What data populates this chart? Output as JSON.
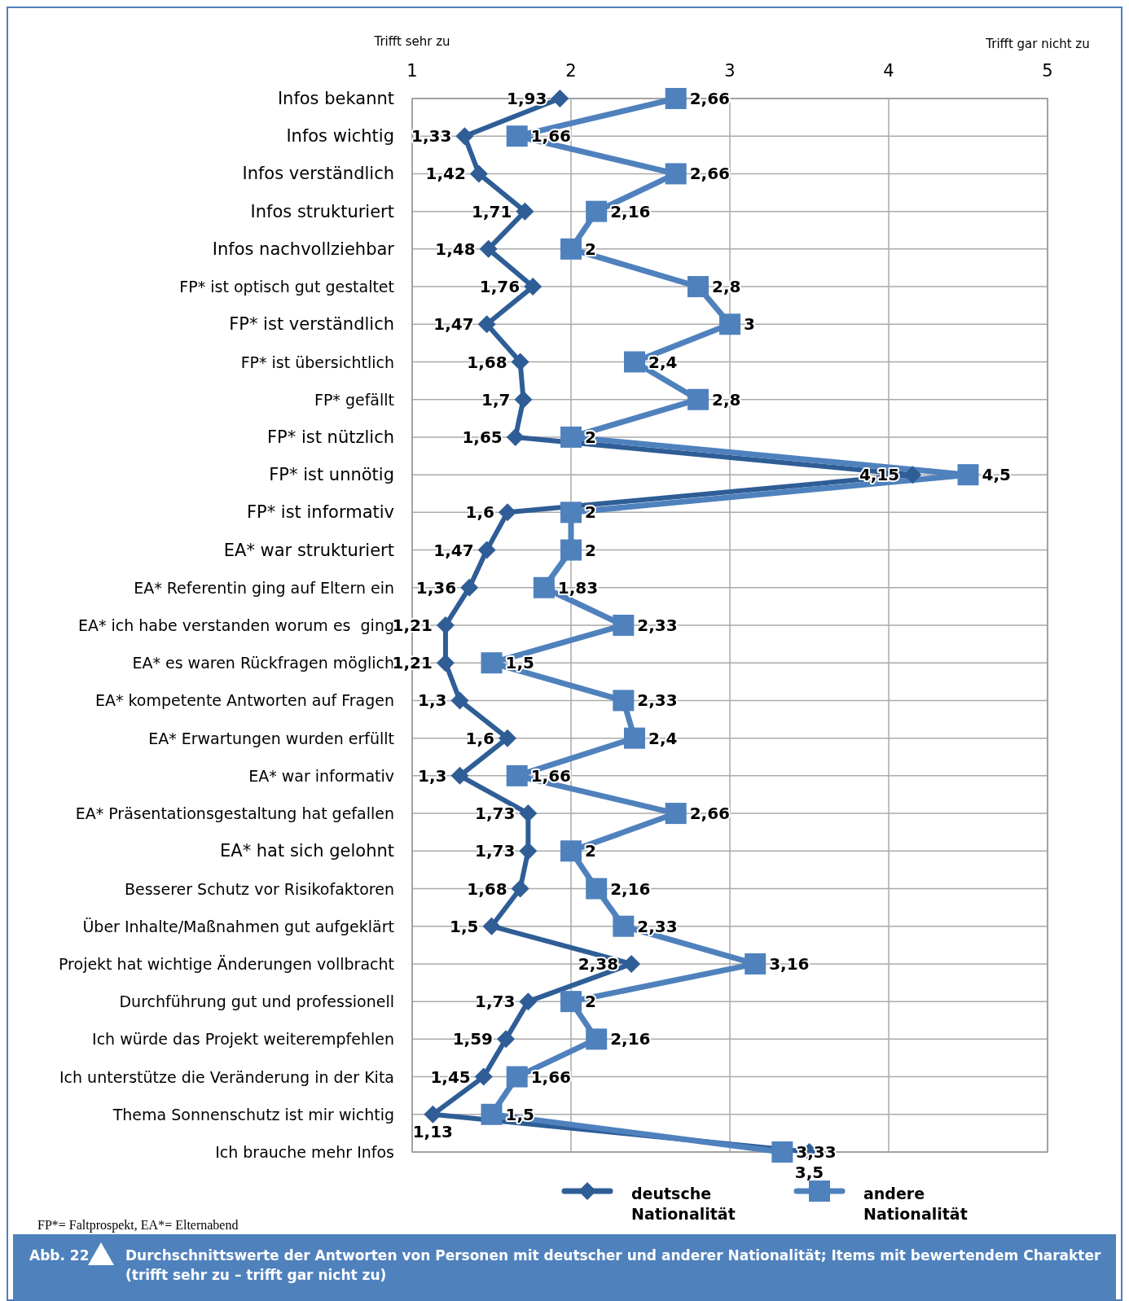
{
  "chart_data": {
    "type": "line",
    "orientation": "horizontal",
    "title": "Abb. 22",
    "subtitle": "Durchschnittswerte der Antworten von Personen mit deutscher und anderer Nationalität; Items mit bewertendem Charakter (trifft sehr zu – trifft gar nicht zu)",
    "categories": [
      "Infos bekannt",
      "Infos wichtig",
      "Infos verständlich",
      "Infos strukturiert",
      "Infos nachvollziehbar",
      "FP* ist optisch gut gestaltet",
      "FP* ist verständlich",
      "FP* ist übersichtlich",
      "FP* gefällt",
      "FP* ist nützlich",
      "FP* ist unnötig",
      "FP* ist informativ",
      "EA* war strukturiert",
      "EA* Referentin ging auf Eltern ein",
      "EA* ich habe verstanden worum es  ging",
      "EA* es waren Rückfragen möglich",
      "EA* kompetente Antworten auf Fragen",
      "EA* Erwartungen wurden erfüllt",
      "EA* war informativ",
      "EA* Präsentationsgestaltung hat gefallen",
      "EA* hat sich gelohnt",
      "Besserer Schutz vor Risikofaktoren",
      "Über Inhalte/Maßnahmen gut aufgeklärt",
      "Projekt hat wichtige Änderungen vollbracht",
      "Durchführung gut und professionell",
      "Ich würde das Projekt weiterempfehlen",
      "Ich unterstütze die Veränderung in der Kita",
      "Thema Sonnenschutz ist mir wichtig",
      "Ich brauche mehr Infos"
    ],
    "series": [
      {
        "name": "deutsche Nationalität",
        "color": "#2f5d96",
        "marker": "diamond",
        "values": [
          1.93,
          1.33,
          1.42,
          1.71,
          1.48,
          1.76,
          1.47,
          1.68,
          1.7,
          1.65,
          4.15,
          1.6,
          1.47,
          1.36,
          1.21,
          1.21,
          1.3,
          1.6,
          1.3,
          1.73,
          1.73,
          1.68,
          1.5,
          2.38,
          1.73,
          1.59,
          1.45,
          1.13,
          3.5
        ],
        "value_labels": [
          "1,93",
          "1,33",
          "1,42",
          "1,71",
          "1,48",
          "1,76",
          "1,47",
          "1,68",
          "1,7",
          "1,65",
          "4,15",
          "1,6",
          "1,47",
          "1,36",
          "1,21",
          "1,21",
          "1,3",
          "1,6",
          "1,3",
          "1,73",
          "1,73",
          "1,68",
          "1,5",
          "2,38",
          "1,73",
          "1,59",
          "1,45",
          "1,13",
          "3,5"
        ]
      },
      {
        "name": "andere Nationalität",
        "color": "#4f81bd",
        "marker": "square",
        "values": [
          2.66,
          1.66,
          2.66,
          2.16,
          2,
          2.8,
          3,
          2.4,
          2.8,
          2,
          4.5,
          2,
          2,
          1.83,
          2.33,
          1.5,
          2.33,
          2.4,
          1.66,
          2.66,
          2,
          2.16,
          2.33,
          3.16,
          2,
          2.16,
          1.66,
          1.5,
          3.33
        ],
        "value_labels": [
          "2,66",
          "1,66",
          "2,66",
          "2,16",
          "2",
          "2,8",
          "3",
          "2,4",
          "2,8",
          "2",
          "4,5",
          "2",
          "2",
          "1,83",
          "2,33",
          "1,5",
          "2,33",
          "2,4",
          "1,66",
          "2,66",
          "2",
          "2,16",
          "2,33",
          "3,16",
          "2",
          "2,16",
          "1,66",
          "1,5",
          "3,33"
        ]
      }
    ],
    "xlim": [
      1,
      5
    ],
    "xticks": [
      1,
      2,
      3,
      4,
      5
    ],
    "grid": true,
    "legend": "bottom",
    "line_style": "solid",
    "annotations": [
      "Trifft sehr zu",
      "Trifft gar nicht zu",
      "FP*= Faltprospekt, EA*= Elternabend"
    ]
  }
}
